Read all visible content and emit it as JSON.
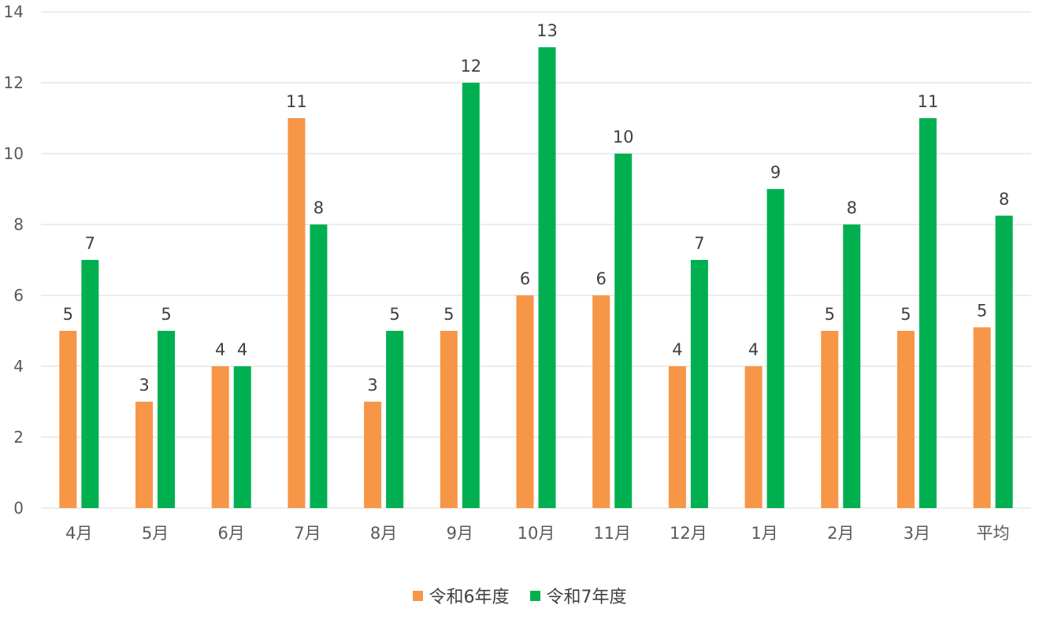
{
  "chart_data": {
    "type": "bar",
    "categories": [
      "4月",
      "5月",
      "6月",
      "7月",
      "8月",
      "9月",
      "10月",
      "11月",
      "12月",
      "1月",
      "2月",
      "3月",
      "平均"
    ],
    "series": [
      {
        "name": "令和6年度",
        "color": "#F79646",
        "values": [
          5,
          3,
          4,
          11,
          3,
          5,
          6,
          6,
          4,
          4,
          5,
          5,
          5.1
        ],
        "labels": [
          "5",
          "3",
          "4",
          "11",
          "3",
          "5",
          "6",
          "6",
          "4",
          "4",
          "5",
          "5",
          "5"
        ]
      },
      {
        "name": "令和7年度",
        "color": "#00B050",
        "values": [
          7,
          5,
          4,
          8,
          5,
          12,
          13,
          10,
          7,
          9,
          8,
          11,
          8.25
        ],
        "labels": [
          "7",
          "5",
          "4",
          "8",
          "5",
          "12",
          "13",
          "10",
          "7",
          "9",
          "8",
          "11",
          "8"
        ]
      }
    ],
    "ylim": [
      0,
      14
    ],
    "yticks": [
      "0",
      "2",
      "4",
      "6",
      "8",
      "10",
      "12",
      "14"
    ],
    "grid": true,
    "legend_position": "bottom"
  }
}
